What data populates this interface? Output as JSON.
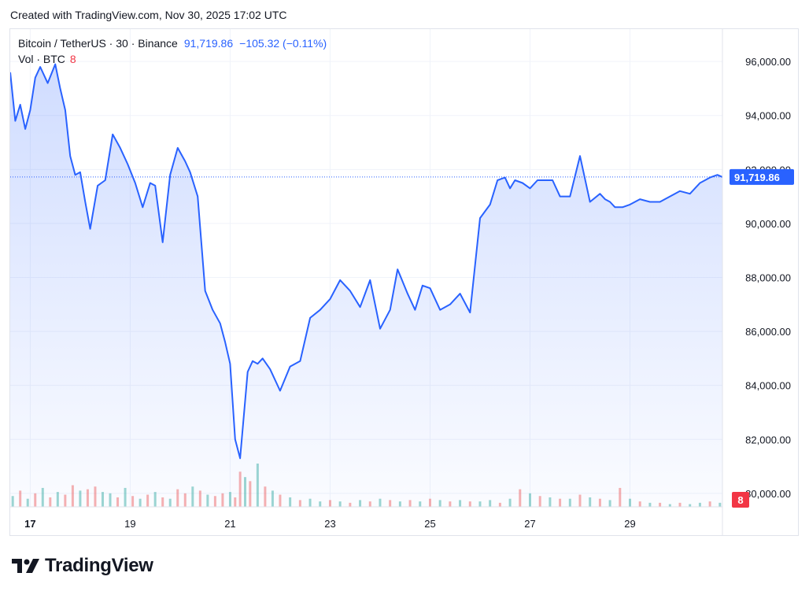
{
  "caption": "Created with TradingView.com, Nov 30, 2025 17:02 UTC",
  "legend": {
    "symbol": "Bitcoin / TetherUS · 30 · Binance",
    "last": "91,719.86",
    "change": "−105.32 (−0.11%)",
    "vol_label": "Vol · BTC",
    "vol_value": "8"
  },
  "brand": "TradingView",
  "colors": {
    "line": "#2962ff",
    "fill": "#2962ff",
    "vol_up": "#26a69a",
    "vol_down": "#ef5350",
    "last_badge": "#2962ff",
    "vol_badge": "#f23645"
  },
  "chart_data": {
    "type": "area",
    "x_unit": "day of Nov 2025",
    "xlim": [
      16.6,
      30.85
    ],
    "ylim": [
      79500,
      97200
    ],
    "y_ticks": [
      "96,000.00",
      "94,000.00",
      "92,000.00",
      "90,000.00",
      "88,000.00",
      "86,000.00",
      "84,000.00",
      "82,000.00",
      "80,000.00"
    ],
    "y_tick_values": [
      96000,
      94000,
      92000,
      90000,
      88000,
      86000,
      84000,
      82000,
      80000
    ],
    "x_ticks": [
      "17",
      "19",
      "21",
      "23",
      "25",
      "27",
      "29"
    ],
    "x_tick_values": [
      17,
      19,
      21,
      23,
      25,
      27,
      29
    ],
    "last_price_label": "91,719.86",
    "last_price": 91719.86,
    "volume_badge": "8",
    "price": {
      "x": [
        16.6,
        16.7,
        16.8,
        16.9,
        17.0,
        17.1,
        17.2,
        17.35,
        17.5,
        17.6,
        17.7,
        17.8,
        17.9,
        18.0,
        18.1,
        18.2,
        18.35,
        18.5,
        18.65,
        18.8,
        18.95,
        19.1,
        19.25,
        19.4,
        19.5,
        19.65,
        19.8,
        19.95,
        20.1,
        20.2,
        20.35,
        20.5,
        20.65,
        20.8,
        20.9,
        21.0,
        21.1,
        21.2,
        21.35,
        21.45,
        21.55,
        21.65,
        21.8,
        22.0,
        22.2,
        22.4,
        22.6,
        22.8,
        23.0,
        23.2,
        23.4,
        23.6,
        23.8,
        24.0,
        24.2,
        24.35,
        24.55,
        24.7,
        24.85,
        25.0,
        25.2,
        25.4,
        25.6,
        25.8,
        26.0,
        26.2,
        26.35,
        26.5,
        26.6,
        26.7,
        26.85,
        27.0,
        27.15,
        27.3,
        27.45,
        27.6,
        27.8,
        28.0,
        28.2,
        28.4,
        28.5,
        28.6,
        28.7,
        28.85,
        29.0,
        29.2,
        29.4,
        29.6,
        29.8,
        30.0,
        30.2,
        30.4,
        30.6,
        30.75,
        30.85
      ],
      "y": [
        95600,
        93800,
        94400,
        93500,
        94200,
        95400,
        95800,
        95200,
        95900,
        95000,
        94200,
        92500,
        91800,
        91900,
        90800,
        89800,
        91400,
        91600,
        93300,
        92800,
        92200,
        91500,
        90600,
        91500,
        91400,
        89300,
        91800,
        92800,
        92300,
        91900,
        91000,
        87500,
        86800,
        86300,
        85600,
        84800,
        82000,
        81300,
        84500,
        84900,
        84800,
        85000,
        84600,
        83800,
        84700,
        84900,
        86500,
        86800,
        87200,
        87900,
        87500,
        86900,
        87900,
        86100,
        86800,
        88300,
        87400,
        86800,
        87700,
        87600,
        86800,
        87000,
        87400,
        86700,
        90200,
        90700,
        91600,
        91700,
        91300,
        91600,
        91500,
        91300,
        91600,
        91600,
        91600,
        91000,
        91000,
        92500,
        90800,
        91100,
        90900,
        90800,
        90600,
        90600,
        90700,
        90900,
        90800,
        90800,
        91000,
        91200,
        91100,
        91500,
        91700,
        91800,
        91720
      ]
    },
    "volume": {
      "x": [
        16.65,
        16.8,
        16.95,
        17.1,
        17.25,
        17.4,
        17.55,
        17.7,
        17.85,
        18.0,
        18.15,
        18.3,
        18.45,
        18.6,
        18.75,
        18.9,
        19.05,
        19.2,
        19.35,
        19.5,
        19.65,
        19.8,
        19.95,
        20.1,
        20.25,
        20.4,
        20.55,
        20.7,
        20.85,
        21.0,
        21.1,
        21.2,
        21.3,
        21.4,
        21.55,
        21.7,
        21.85,
        22.0,
        22.2,
        22.4,
        22.6,
        22.8,
        23.0,
        23.2,
        23.4,
        23.6,
        23.8,
        24.0,
        24.2,
        24.4,
        24.6,
        24.8,
        25.0,
        25.2,
        25.4,
        25.6,
        25.8,
        26.0,
        26.2,
        26.4,
        26.6,
        26.8,
        27.0,
        27.2,
        27.4,
        27.6,
        27.8,
        28.0,
        28.2,
        28.4,
        28.6,
        28.8,
        29.0,
        29.2,
        29.4,
        29.6,
        29.8,
        30.0,
        30.2,
        30.4,
        30.6,
        30.8
      ],
      "v": [
        8,
        12,
        6,
        10,
        14,
        7,
        11,
        9,
        16,
        12,
        13,
        15,
        11,
        10,
        7,
        14,
        8,
        6,
        9,
        11,
        7,
        6,
        13,
        10,
        15,
        12,
        9,
        8,
        10,
        11,
        7,
        26,
        22,
        19,
        32,
        15,
        12,
        9,
        7,
        5,
        6,
        4,
        5,
        4,
        3,
        5,
        4,
        6,
        5,
        4,
        5,
        4,
        6,
        5,
        4,
        5,
        4,
        4,
        5,
        3,
        6,
        13,
        10,
        8,
        7,
        6,
        6,
        9,
        7,
        6,
        5,
        14,
        6,
        4,
        3,
        3,
        2,
        3,
        2,
        3,
        4,
        3
      ],
      "up": [
        true,
        false,
        true,
        false,
        true,
        false,
        true,
        false,
        false,
        true,
        false,
        false,
        true,
        true,
        false,
        true,
        false,
        true,
        false,
        true,
        false,
        true,
        false,
        false,
        true,
        false,
        true,
        false,
        false,
        true,
        false,
        false,
        true,
        false,
        true,
        false,
        true,
        false,
        true,
        false,
        true,
        true,
        false,
        true,
        false,
        true,
        false,
        true,
        false,
        true,
        false,
        true,
        false,
        true,
        false,
        true,
        false,
        true,
        true,
        false,
        true,
        false,
        true,
        false,
        true,
        false,
        true,
        false,
        true,
        false,
        true,
        false,
        true,
        false,
        true,
        false,
        true,
        false,
        true,
        true,
        false,
        true
      ]
    }
  }
}
